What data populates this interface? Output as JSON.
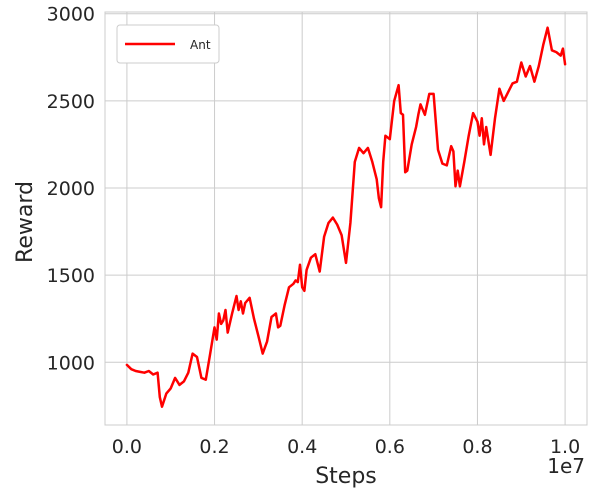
{
  "chart_data": {
    "type": "line",
    "title": "",
    "xlabel": "Steps",
    "ylabel": "Reward",
    "x_offset_label": "1e7",
    "xlim": [
      -0.05,
      1.05
    ],
    "ylim": [
      640,
      3010
    ],
    "xticks": [
      0.0,
      0.2,
      0.4,
      0.6,
      0.8,
      1.0
    ],
    "xtick_labels": [
      "0.0",
      "0.2",
      "0.4",
      "0.6",
      "0.8",
      "1.0"
    ],
    "yticks": [
      1000,
      1500,
      2000,
      2500,
      3000
    ],
    "ytick_labels": [
      "1000",
      "1500",
      "2000",
      "2500",
      "3000"
    ],
    "grid": true,
    "legend_position": "top-left",
    "series": [
      {
        "name": "Ant",
        "color": "#ff0000",
        "x": [
          0.0,
          0.01,
          0.02,
          0.03,
          0.04,
          0.05,
          0.06,
          0.07,
          0.075,
          0.08,
          0.09,
          0.1,
          0.11,
          0.12,
          0.13,
          0.14,
          0.15,
          0.16,
          0.17,
          0.18,
          0.19,
          0.2,
          0.205,
          0.21,
          0.215,
          0.22,
          0.225,
          0.23,
          0.24,
          0.25,
          0.255,
          0.26,
          0.265,
          0.27,
          0.28,
          0.29,
          0.3,
          0.31,
          0.32,
          0.33,
          0.34,
          0.345,
          0.35,
          0.36,
          0.37,
          0.38,
          0.385,
          0.39,
          0.395,
          0.4,
          0.405,
          0.41,
          0.42,
          0.43,
          0.44,
          0.45,
          0.46,
          0.47,
          0.48,
          0.49,
          0.5,
          0.51,
          0.52,
          0.53,
          0.54,
          0.55,
          0.56,
          0.57,
          0.575,
          0.58,
          0.585,
          0.59,
          0.6,
          0.61,
          0.62,
          0.625,
          0.63,
          0.635,
          0.64,
          0.65,
          0.66,
          0.665,
          0.67,
          0.68,
          0.69,
          0.7,
          0.71,
          0.72,
          0.73,
          0.74,
          0.745,
          0.75,
          0.755,
          0.76,
          0.77,
          0.78,
          0.79,
          0.8,
          0.805,
          0.81,
          0.815,
          0.82,
          0.83,
          0.84,
          0.85,
          0.86,
          0.87,
          0.88,
          0.89,
          0.9,
          0.91,
          0.92,
          0.93,
          0.94,
          0.95,
          0.96,
          0.97,
          0.98,
          0.99,
          0.995,
          1.0
        ],
        "y": [
          985,
          960,
          950,
          945,
          940,
          950,
          930,
          940,
          800,
          745,
          820,
          850,
          910,
          870,
          890,
          940,
          1050,
          1030,
          910,
          900,
          1050,
          1200,
          1130,
          1280,
          1220,
          1240,
          1300,
          1170,
          1280,
          1380,
          1300,
          1350,
          1280,
          1340,
          1370,
          1250,
          1150,
          1050,
          1120,
          1260,
          1280,
          1200,
          1210,
          1330,
          1430,
          1450,
          1470,
          1460,
          1560,
          1430,
          1410,
          1530,
          1600,
          1620,
          1520,
          1720,
          1800,
          1830,
          1790,
          1730,
          1570,
          1800,
          2150,
          2230,
          2200,
          2230,
          2150,
          2050,
          1940,
          1890,
          2150,
          2300,
          2280,
          2500,
          2590,
          2430,
          2420,
          2090,
          2100,
          2250,
          2350,
          2420,
          2480,
          2420,
          2540,
          2540,
          2220,
          2140,
          2130,
          2240,
          2210,
          2010,
          2100,
          2010,
          2150,
          2300,
          2430,
          2380,
          2300,
          2400,
          2250,
          2350,
          2190,
          2400,
          2570,
          2500,
          2550,
          2600,
          2610,
          2720,
          2640,
          2700,
          2610,
          2700,
          2820,
          2920,
          2790,
          2780,
          2760,
          2800,
          2710
        ]
      }
    ]
  }
}
